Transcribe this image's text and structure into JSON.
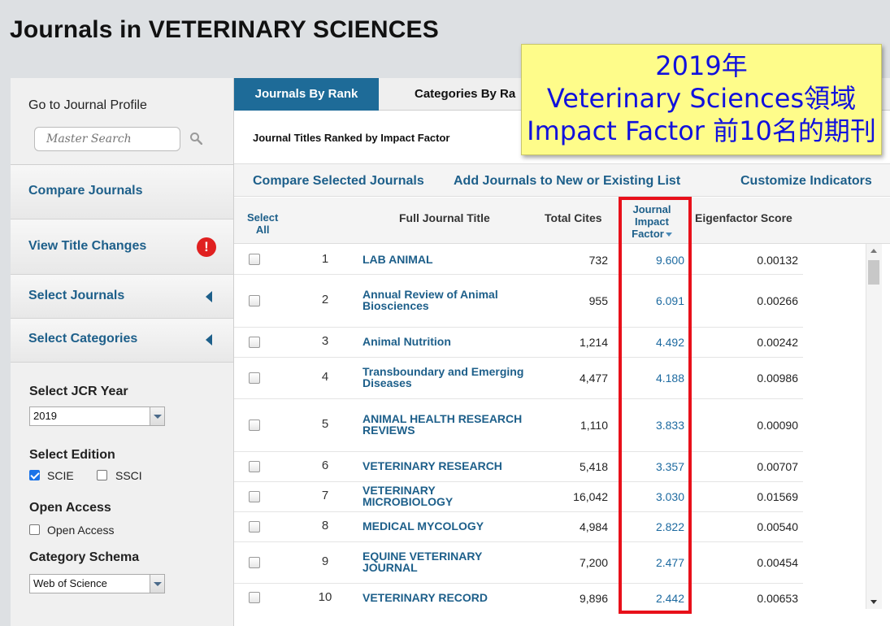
{
  "page_title": "Journals in VETERINARY SCIENCES",
  "sidebar": {
    "goto_label": "Go to Journal Profile",
    "search_placeholder": "Master Search",
    "compare_journals": "Compare Journals",
    "view_title_changes": "View Title Changes",
    "alert_symbol": "!",
    "select_journals": "Select Journals",
    "select_categories": "Select Categories",
    "jcr_year_label": "Select JCR Year",
    "jcr_year_value": "2019",
    "edition_label": "Select Edition",
    "edition_scie": "SCIE",
    "edition_ssci": "SSCI",
    "open_access_label": "Open Access",
    "open_access_option": "Open Access",
    "schema_label": "Category Schema",
    "schema_value": "Web of Science"
  },
  "tabs": {
    "rank": "Journals By Rank",
    "categories": "Categories By Ra"
  },
  "subhead": "Journal Titles Ranked by Impact Factor",
  "actions": {
    "compare": "Compare Selected Journals",
    "add": "Add Journals to New or Existing List",
    "customize": "Customize Indicators"
  },
  "table": {
    "headers": {
      "select_all_1": "Select",
      "select_all_2": "All",
      "title": "Full Journal Title",
      "cites": "Total Cites",
      "jif_1": "Journal",
      "jif_2": "Impact",
      "jif_3": "Factor",
      "eigen": "Eigenfactor Score"
    },
    "rows": [
      {
        "rank": "1",
        "t1": "LAB ANIMAL",
        "t2": "",
        "cites": "732",
        "jif": "9.600",
        "eigen": "0.00132"
      },
      {
        "rank": "2",
        "t1": "Annual Review of Animal",
        "t2": "Biosciences",
        "cites": "955",
        "jif": "6.091",
        "eigen": "0.00266"
      },
      {
        "rank": "3",
        "t1": "Animal Nutrition",
        "t2": "",
        "cites": "1,214",
        "jif": "4.492",
        "eigen": "0.00242"
      },
      {
        "rank": "4",
        "t1": "Transboundary and Emerging",
        "t2": "Diseases",
        "cites": "4,477",
        "jif": "4.188",
        "eigen": "0.00986"
      },
      {
        "rank": "5",
        "t1": "ANIMAL HEALTH RESEARCH",
        "t2": "REVIEWS",
        "cites": "1,110",
        "jif": "3.833",
        "eigen": "0.00090"
      },
      {
        "rank": "6",
        "t1": "VETERINARY RESEARCH",
        "t2": "",
        "cites": "5,418",
        "jif": "3.357",
        "eigen": "0.00707"
      },
      {
        "rank": "7",
        "t1": "VETERINARY",
        "t2": "MICROBIOLOGY",
        "cites": "16,042",
        "jif": "3.030",
        "eigen": "0.01569"
      },
      {
        "rank": "8",
        "t1": "MEDICAL MYCOLOGY",
        "t2": "",
        "cites": "4,984",
        "jif": "2.822",
        "eigen": "0.00540"
      },
      {
        "rank": "9",
        "t1": "EQUINE VETERINARY",
        "t2": "JOURNAL",
        "cites": "7,200",
        "jif": "2.477",
        "eigen": "0.00454"
      },
      {
        "rank": "10",
        "t1": "VETERINARY RECORD",
        "t2": "",
        "cites": "9,896",
        "jif": "2.442",
        "eigen": "0.00653"
      }
    ]
  },
  "callout": {
    "line1": "2019年",
    "line2": "Veterinary Sciences領域",
    "line3": "Impact Factor 前10名的期刊"
  },
  "colors": {
    "accent": "#1e6b98",
    "link": "#1d5f8a",
    "highlight": "#e8101a",
    "callout_bg": "#fefc8a",
    "callout_text": "#1111dd"
  }
}
